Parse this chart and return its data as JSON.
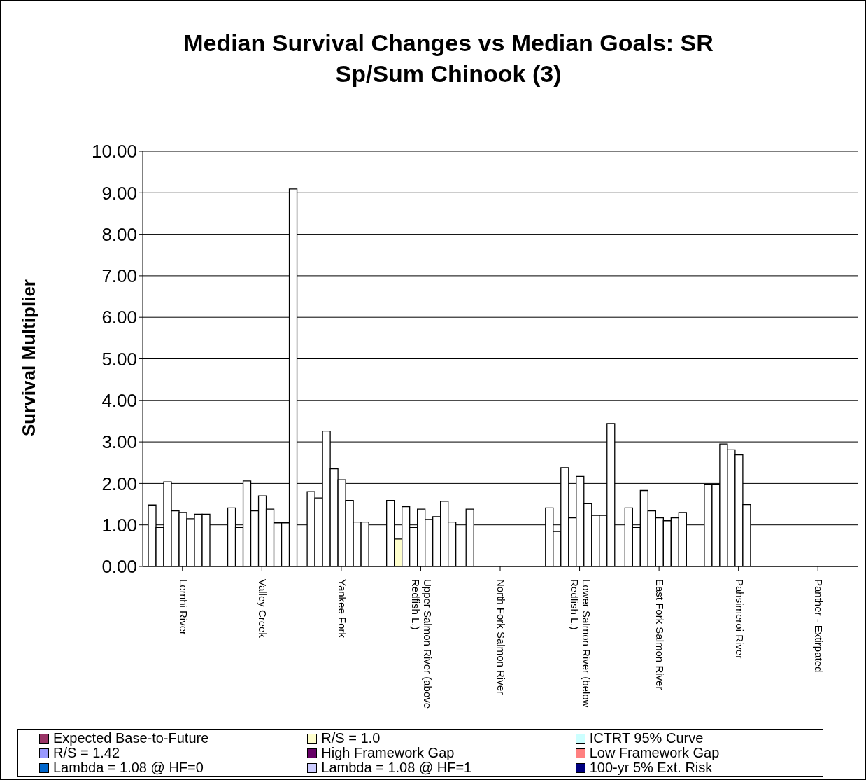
{
  "chart_data": {
    "type": "bar",
    "title": "Median Survival Changes vs Median Goals: SR Sp/Sum Chinook (3)",
    "ylabel": "Survival Multiplier",
    "categories": [
      "Lemhi River",
      "Valley Creek",
      "Yankee Fork",
      "Upper Salmon River (above Redfish L.)",
      "North Fork Salmon River",
      "Lower Salmon River (below Redfish L.)",
      "East Fork Salmon River",
      "Pahsimeroi River",
      "Panther - Extirpated"
    ],
    "series": [
      {
        "name": "Expected Base-to-Future",
        "color": "#993366",
        "colors": [
          "#ffffff",
          "#ffffff",
          "#ffffff",
          "#ffffff",
          "#ffffff",
          "#ffffff",
          "#ffffff",
          "#ffffff",
          "#ffffff"
        ],
        "values": [
          1.48,
          1.41,
          1.8,
          1.59,
          1.38,
          1.41,
          1.41,
          1.98,
          null
        ]
      },
      {
        "name": "R/S = 1.0",
        "color": "#ffffcc",
        "colors": [
          "#ffffff",
          "#ffffff",
          "#ffffff",
          "#ffffcc",
          "#ffffff",
          "#ffffff",
          "#ffffff",
          "#ffffff",
          "#ffffff"
        ],
        "values": [
          0.94,
          0.94,
          1.65,
          0.66,
          null,
          0.84,
          0.94,
          1.98,
          null
        ]
      },
      {
        "name": "ICTRT 95% Curve",
        "color": "#ccffff",
        "colors": [
          "#ffffff",
          "#ffffff",
          "#ffffff",
          "#ffffff",
          "#ffffff",
          "#ffffff",
          "#ffffff",
          "#ffffff",
          "#ffffff"
        ],
        "values": [
          2.04,
          2.06,
          3.26,
          1.44,
          null,
          2.38,
          1.83,
          2.95,
          null
        ]
      },
      {
        "name": "R/S = 1.42",
        "color": "#9999ff",
        "colors": [
          "#ffffff",
          "#ffffff",
          "#ffffff",
          "#ffffff",
          "#ffffff",
          "#ffffff",
          "#ffffff",
          "#ffffff",
          "#ffffff"
        ],
        "values": [
          1.34,
          1.34,
          2.35,
          0.94,
          null,
          1.17,
          1.34,
          2.81,
          null
        ]
      },
      {
        "name": "High Framework Gap",
        "color": "#660066",
        "colors": [
          "#ffffff",
          "#ffffff",
          "#ffffff",
          "#ffffff",
          "#ffffff",
          "#ffffff",
          "#ffffff",
          "#ffffff",
          "#ffffff"
        ],
        "values": [
          1.3,
          1.7,
          2.09,
          1.38,
          null,
          2.17,
          1.17,
          2.69,
          null
        ]
      },
      {
        "name": "Low Framework Gap",
        "color": "#ff8080",
        "colors": [
          "#ffffff",
          "#ffffff",
          "#ffffff",
          "#ffffff",
          "#ffffff",
          "#ffffff",
          "#ffffff",
          "#ffffff",
          "#ffffff"
        ],
        "values": [
          1.15,
          1.38,
          1.59,
          1.13,
          null,
          1.51,
          1.1,
          1.49,
          null
        ]
      },
      {
        "name": "Lambda = 1.08 @ HF=0",
        "color": "#0066cc",
        "colors": [
          "#ffffff",
          "#ffffff",
          "#ffffff",
          "#ffffff",
          "#ffffff",
          "#ffffff",
          "#ffffff",
          "#ffffff",
          "#ffffff"
        ],
        "values": [
          1.26,
          1.05,
          1.07,
          1.2,
          null,
          1.23,
          1.17,
          null,
          null
        ]
      },
      {
        "name": "Lambda = 1.08 @ HF=1",
        "color": "#ccccff",
        "colors": [
          "#ffffff",
          "#ffffff",
          "#ffffff",
          "#ffffff",
          "#ffffff",
          "#ffffff",
          "#ffffff",
          "#ffffff",
          "#ffffff"
        ],
        "values": [
          1.26,
          1.05,
          1.07,
          1.57,
          null,
          1.23,
          1.3,
          null,
          null
        ]
      },
      {
        "name": "100-yr 5% Ext. Risk",
        "color": "#000080",
        "colors": [
          "#ffffff",
          "#ffffff",
          "#ffffff",
          "#ffffff",
          "#ffffff",
          "#ffffff",
          "#ffffff",
          "#ffffff",
          "#ffffff"
        ],
        "values": [
          null,
          9.09,
          null,
          1.07,
          null,
          3.44,
          null,
          null,
          null
        ]
      }
    ],
    "ylim": [
      0,
      10
    ],
    "yticks": [
      {
        "value": 0,
        "label": "0.00"
      },
      {
        "value": 1,
        "label": "1.00"
      },
      {
        "value": 2,
        "label": "2.00"
      },
      {
        "value": 3,
        "label": "3.00"
      },
      {
        "value": 4,
        "label": "4.00"
      },
      {
        "value": 5,
        "label": "5.00"
      },
      {
        "value": 6,
        "label": "6.00"
      },
      {
        "value": 7,
        "label": "7.00"
      },
      {
        "value": 8,
        "label": "8.00"
      },
      {
        "value": 9,
        "label": "9.00"
      },
      {
        "value": 10,
        "label": "10.00"
      }
    ],
    "grid": "y",
    "legend": "bottom"
  }
}
